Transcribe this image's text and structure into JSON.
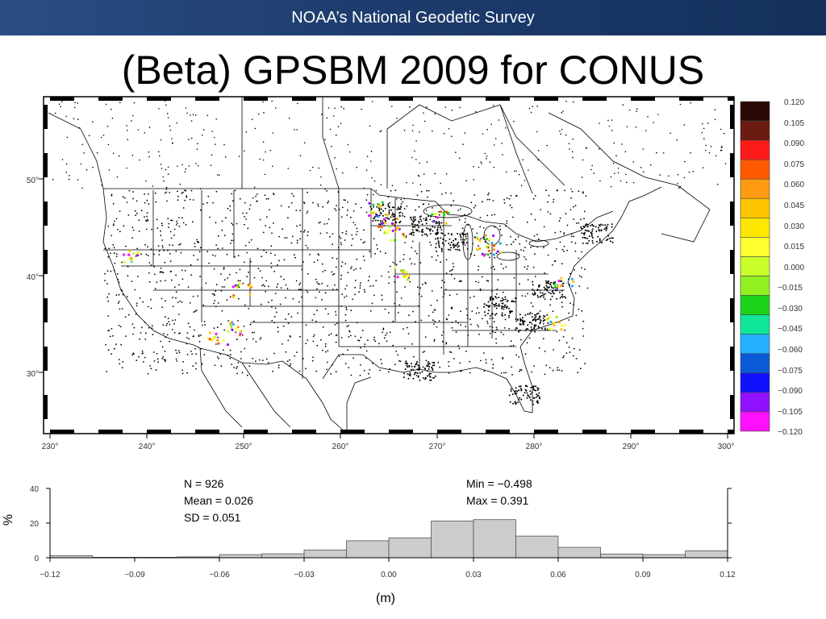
{
  "header": {
    "banner": "NOAA’s National Geodetic Survey"
  },
  "slide": {
    "title": "(Beta) GPSBM 2009 for CONUS"
  },
  "chart_data": [
    {
      "type": "scatter",
      "map": true,
      "x_ticks": [
        "230°",
        "240°",
        "250°",
        "260°",
        "270°",
        "280°",
        "290°",
        "300°"
      ],
      "y_ticks": [
        "30°",
        "40°",
        "50°"
      ],
      "xlim": [
        230,
        300
      ],
      "ylim": [
        23,
        58
      ],
      "colorbar": {
        "labels": [
          "0.120",
          "0.105",
          "0.090",
          "0.075",
          "0.060",
          "0.045",
          "0.030",
          "0.015",
          "0.000",
          "−0.015",
          "−0.030",
          "−0.045",
          "−0.060",
          "−0.075",
          "−0.090",
          "−0.105",
          "−0.120"
        ],
        "colors": [
          "#2a0a04",
          "#6b1b12",
          "#ff1a1a",
          "#ff5a00",
          "#ff9a10",
          "#ffc400",
          "#ffe800",
          "#ffff30",
          "#c8ff2a",
          "#90f020",
          "#1ad31a",
          "#10e69a",
          "#22b0ff",
          "#0a5ad8",
          "#1010ff",
          "#9010ff",
          "#ff10ff"
        ]
      }
    },
    {
      "type": "bar",
      "title": "",
      "xlabel": "(m)",
      "ylabel": "%",
      "xlim": [
        -0.12,
        0.12
      ],
      "ylim": [
        0,
        40
      ],
      "x_ticks": [
        "−0.12",
        "−0.09",
        "−0.06",
        "−0.03",
        "0.00",
        "0.03",
        "0.06",
        "0.09",
        "0.12"
      ],
      "y_ticks": [
        "0",
        "20",
        "40"
      ],
      "bin_width": 0.015,
      "bins": [
        -0.12,
        -0.105,
        -0.09,
        -0.075,
        -0.06,
        -0.045,
        -0.03,
        -0.015,
        0.0,
        0.015,
        0.03,
        0.045,
        0.06,
        0.075,
        0.09,
        0.105
      ],
      "values": [
        1.2,
        0.3,
        0.3,
        0.5,
        1.8,
        2.3,
        4.5,
        9.8,
        11.5,
        21.2,
        22.0,
        12.5,
        6.0,
        2.2,
        1.8,
        4.0
      ],
      "stats": {
        "n": "N =  926",
        "mean": "Mean = 0.026",
        "sd": "SD = 0.051",
        "min": "Min = −0.498",
        "max": "Max = 0.391"
      }
    }
  ]
}
